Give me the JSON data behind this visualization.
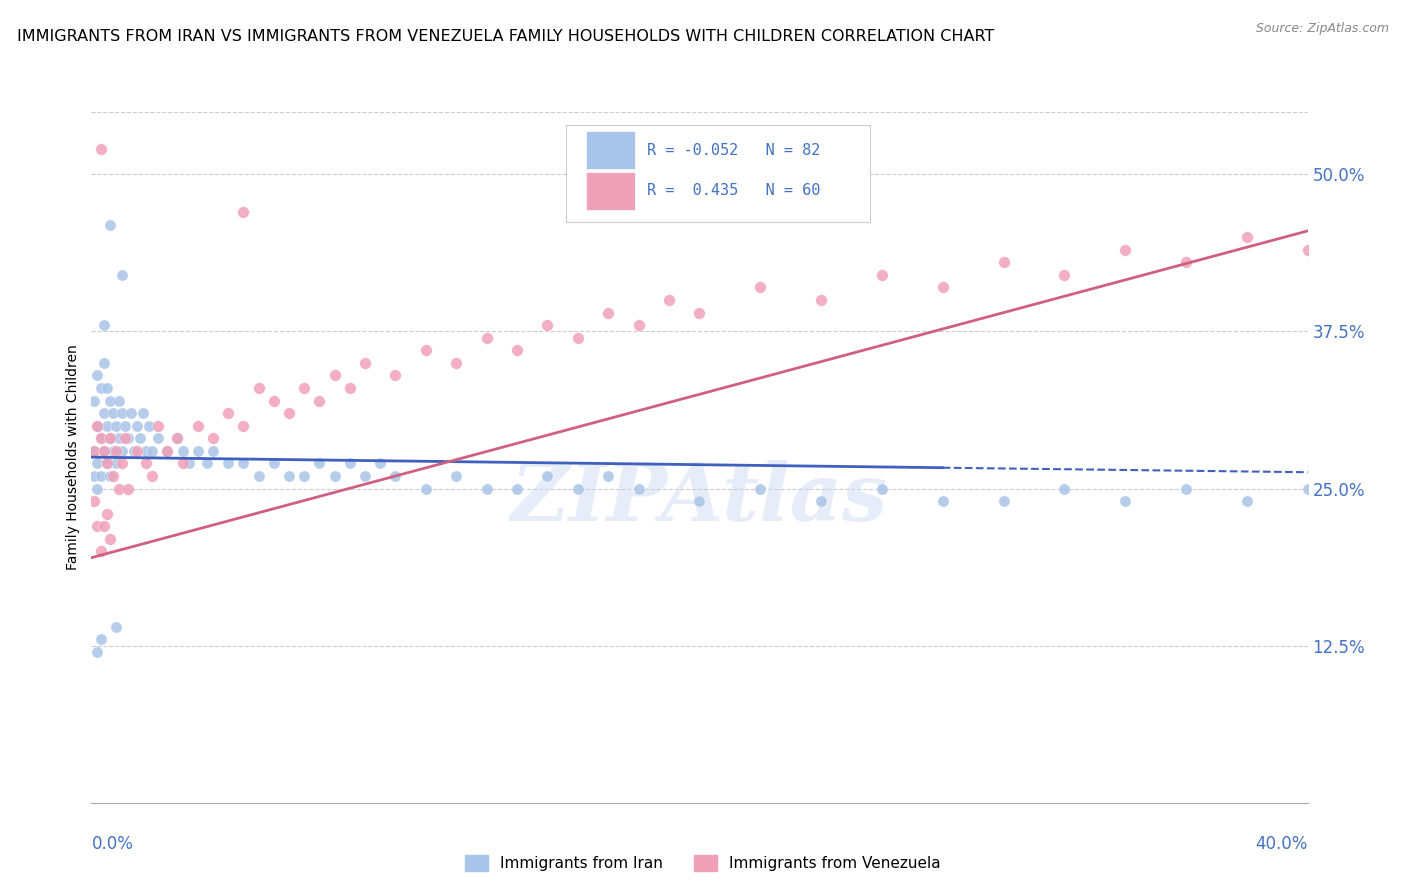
{
  "title": "IMMIGRANTS FROM IRAN VS IMMIGRANTS FROM VENEZUELA FAMILY HOUSEHOLDS WITH CHILDREN CORRELATION CHART",
  "source": "Source: ZipAtlas.com",
  "ylabel": "Family Households with Children",
  "iran_R": -0.052,
  "iran_N": 82,
  "venezuela_R": 0.435,
  "venezuela_N": 60,
  "iran_color": "#a8c4e8",
  "venezuela_color": "#f0a0b8",
  "iran_line_color": "#4060c0",
  "venezuela_line_color": "#d06080",
  "watermark": "ZIPAtlas",
  "iran_x": [
    0.001,
    0.001,
    0.001,
    0.002,
    0.002,
    0.002,
    0.002,
    0.003,
    0.003,
    0.003,
    0.004,
    0.004,
    0.004,
    0.005,
    0.005,
    0.005,
    0.006,
    0.006,
    0.006,
    0.007,
    0.007,
    0.008,
    0.008,
    0.009,
    0.009,
    0.01,
    0.01,
    0.011,
    0.012,
    0.013,
    0.014,
    0.015,
    0.016,
    0.017,
    0.018,
    0.019,
    0.02,
    0.022,
    0.025,
    0.028,
    0.03,
    0.032,
    0.035,
    0.038,
    0.04,
    0.045,
    0.05,
    0.055,
    0.06,
    0.065,
    0.07,
    0.075,
    0.08,
    0.085,
    0.09,
    0.095,
    0.1,
    0.11,
    0.12,
    0.13,
    0.14,
    0.15,
    0.16,
    0.17,
    0.18,
    0.2,
    0.22,
    0.24,
    0.26,
    0.28,
    0.3,
    0.32,
    0.34,
    0.36,
    0.38,
    0.4,
    0.01,
    0.008,
    0.006,
    0.004,
    0.003,
    0.002
  ],
  "iran_y": [
    0.32,
    0.28,
    0.26,
    0.34,
    0.3,
    0.27,
    0.25,
    0.33,
    0.29,
    0.26,
    0.35,
    0.31,
    0.28,
    0.33,
    0.3,
    0.27,
    0.32,
    0.29,
    0.26,
    0.31,
    0.28,
    0.3,
    0.27,
    0.32,
    0.29,
    0.31,
    0.28,
    0.3,
    0.29,
    0.31,
    0.28,
    0.3,
    0.29,
    0.31,
    0.28,
    0.3,
    0.28,
    0.29,
    0.28,
    0.29,
    0.28,
    0.27,
    0.28,
    0.27,
    0.28,
    0.27,
    0.27,
    0.26,
    0.27,
    0.26,
    0.26,
    0.27,
    0.26,
    0.27,
    0.26,
    0.27,
    0.26,
    0.25,
    0.26,
    0.25,
    0.25,
    0.26,
    0.25,
    0.26,
    0.25,
    0.24,
    0.25,
    0.24,
    0.25,
    0.24,
    0.24,
    0.25,
    0.24,
    0.25,
    0.24,
    0.25,
    0.42,
    0.14,
    0.46,
    0.38,
    0.13,
    0.12
  ],
  "venezuela_x": [
    0.001,
    0.001,
    0.002,
    0.002,
    0.003,
    0.003,
    0.004,
    0.004,
    0.005,
    0.005,
    0.006,
    0.006,
    0.007,
    0.008,
    0.009,
    0.01,
    0.011,
    0.012,
    0.015,
    0.018,
    0.02,
    0.022,
    0.025,
    0.028,
    0.03,
    0.035,
    0.04,
    0.045,
    0.05,
    0.055,
    0.06,
    0.065,
    0.07,
    0.075,
    0.08,
    0.085,
    0.09,
    0.1,
    0.11,
    0.12,
    0.13,
    0.14,
    0.15,
    0.16,
    0.17,
    0.18,
    0.19,
    0.2,
    0.22,
    0.24,
    0.26,
    0.28,
    0.3,
    0.32,
    0.34,
    0.36,
    0.38,
    0.4,
    0.003,
    0.05
  ],
  "venezuela_y": [
    0.28,
    0.24,
    0.3,
    0.22,
    0.29,
    0.2,
    0.28,
    0.22,
    0.27,
    0.23,
    0.29,
    0.21,
    0.26,
    0.28,
    0.25,
    0.27,
    0.29,
    0.25,
    0.28,
    0.27,
    0.26,
    0.3,
    0.28,
    0.29,
    0.27,
    0.3,
    0.29,
    0.31,
    0.3,
    0.33,
    0.32,
    0.31,
    0.33,
    0.32,
    0.34,
    0.33,
    0.35,
    0.34,
    0.36,
    0.35,
    0.37,
    0.36,
    0.38,
    0.37,
    0.39,
    0.38,
    0.4,
    0.39,
    0.41,
    0.4,
    0.42,
    0.41,
    0.43,
    0.42,
    0.44,
    0.43,
    0.45,
    0.44,
    0.52,
    0.47
  ],
  "xlim": [
    0.0,
    0.4
  ],
  "ylim": [
    0.0,
    0.55
  ],
  "iran_line_solid_end": 0.28,
  "iran_line_dash_start": 0.28,
  "right_yticks": [
    0.0,
    0.125,
    0.25,
    0.375,
    0.5
  ],
  "right_yticklabels": [
    "",
    "12.5%",
    "25.0%",
    "37.5%",
    "50.0%"
  ]
}
